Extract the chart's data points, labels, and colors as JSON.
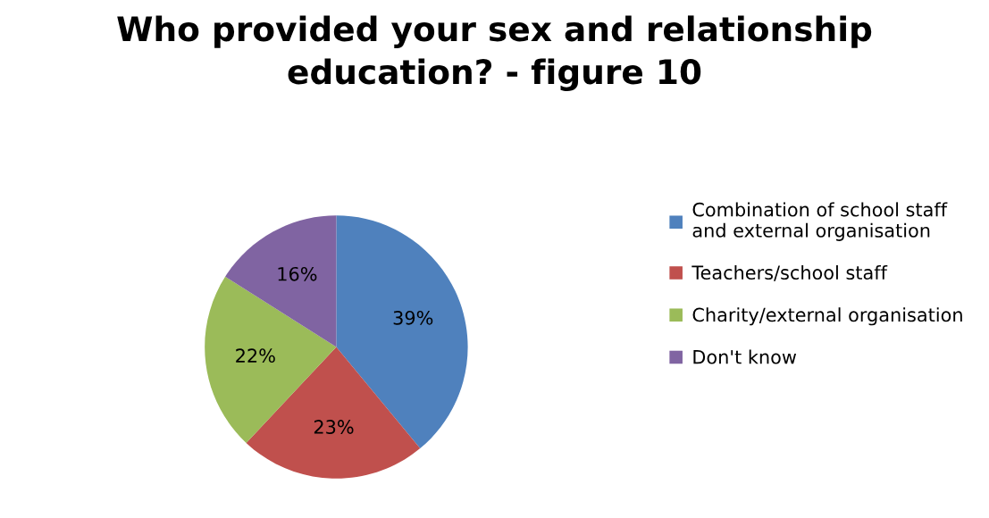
{
  "chart_data": {
    "type": "pie",
    "title": "Who provided your sex and relationship\neducation? - figure 10",
    "categories": [
      "Combination of school staff\nand external organisation",
      "Teachers/school staff",
      "Charity/external organisation",
      "Don't know"
    ],
    "values": [
      39,
      23,
      22,
      16
    ],
    "colors": [
      "#4f81bd",
      "#c0504d",
      "#9bbb59",
      "#8064a2"
    ],
    "value_labels": [
      "39%",
      "23%",
      "22%",
      "16%"
    ],
    "legend": "right"
  }
}
